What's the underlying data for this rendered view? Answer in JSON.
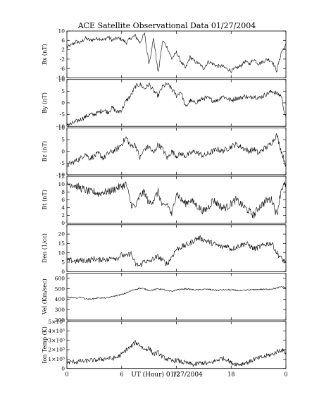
{
  "chart_data": {
    "title": "ACE Satellite Observational Data   01/27/2004",
    "type": "line",
    "xlabel": "UT (Hour)   01/27/2004",
    "x_ticks": [
      "0",
      "6",
      "12",
      "18",
      "0"
    ],
    "xlim": [
      0,
      24
    ],
    "grid": false,
    "panels": [
      {
        "ylabel": "Bx (nT)",
        "ylim": [
          -10,
          10
        ],
        "y_ticks": [
          -10,
          -6,
          -2,
          2,
          6,
          10
        ],
        "x": [
          0,
          0.5,
          1,
          1.5,
          2,
          2.5,
          3,
          3.5,
          4,
          4.5,
          5,
          5.5,
          6,
          6.5,
          7,
          7.5,
          8,
          8.5,
          9,
          9.5,
          10,
          10.5,
          11,
          11.5,
          12,
          12.5,
          13,
          13.5,
          14,
          14.5,
          15,
          15.5,
          16,
          16.5,
          17,
          17.5,
          18,
          18.5,
          19,
          19.5,
          20,
          20.5,
          21,
          21.5,
          22,
          22.5,
          23,
          23.5,
          24
        ],
        "values": [
          3,
          4,
          5.5,
          5,
          7,
          6,
          6.5,
          7,
          6,
          7.5,
          6,
          7,
          6.5,
          5,
          7,
          8,
          5,
          9,
          -4,
          7,
          -8,
          6,
          3,
          -2,
          1,
          -3,
          -6,
          -1,
          -3,
          -4,
          -6,
          -3,
          -4,
          -5,
          -5,
          -6,
          -7,
          -6,
          -5,
          -3,
          -4,
          -2,
          -4,
          -3,
          -2,
          -3,
          -7,
          1,
          4
        ],
        "noise": 0.8
      },
      {
        "ylabel": "By (nT)",
        "ylim": [
          -10,
          10
        ],
        "y_ticks": [
          -10,
          -5,
          0,
          5,
          10
        ],
        "x": [
          0,
          0.5,
          1,
          1.5,
          2,
          2.5,
          3,
          3.5,
          4,
          4.5,
          5,
          5.5,
          6,
          6.5,
          7,
          7.5,
          8,
          8.5,
          9,
          9.5,
          10,
          10.5,
          11,
          11.5,
          12,
          12.5,
          13,
          13.5,
          14,
          14.5,
          15,
          15.5,
          16,
          16.5,
          17,
          17.5,
          18,
          18.5,
          19,
          19.5,
          20,
          20.5,
          21,
          21.5,
          22,
          22.5,
          23,
          23.5,
          24
        ],
        "values": [
          -9,
          -9,
          -8,
          -7,
          -6,
          -5,
          -5,
          -4,
          -3,
          -4,
          -2,
          -4,
          -3,
          1,
          3,
          7,
          8,
          6,
          8,
          5,
          3,
          7,
          8,
          6,
          3,
          5,
          -2,
          1,
          0,
          1,
          2,
          2,
          1,
          1,
          3,
          2,
          1,
          2,
          2,
          3,
          2,
          3,
          2,
          3,
          4,
          5,
          4,
          3,
          -7
        ],
        "noise": 1.0
      },
      {
        "ylabel": "Bz (nT)",
        "ylim": [
          -10,
          10
        ],
        "y_ticks": [
          -10,
          -5,
          0,
          5,
          10
        ],
        "x": [
          0,
          0.5,
          1,
          1.5,
          2,
          2.5,
          3,
          3.5,
          4,
          4.5,
          5,
          5.5,
          6,
          6.5,
          7,
          7.5,
          8,
          8.5,
          9,
          9.5,
          10,
          10.5,
          11,
          11.5,
          12,
          12.5,
          13,
          13.5,
          14,
          14.5,
          15,
          15.5,
          16,
          16.5,
          17,
          17.5,
          18,
          18.5,
          19,
          19.5,
          20,
          20.5,
          21,
          21.5,
          22,
          22.5,
          23,
          23.5,
          24
        ],
        "values": [
          -6,
          -5,
          -4,
          -3,
          -1,
          -3,
          -2,
          -1,
          -3,
          -1,
          0,
          1,
          3,
          6,
          2,
          3,
          -3,
          1,
          2,
          -1,
          3,
          1,
          -3,
          0,
          -2,
          -1,
          -2,
          -1,
          0,
          -1,
          -2,
          -1,
          0,
          1,
          0,
          1,
          2,
          3,
          2,
          1,
          0,
          1,
          -1,
          1,
          2,
          4,
          7,
          0,
          -6
        ],
        "noise": 1.2
      },
      {
        "ylabel": "Bt (nT)",
        "ylim": [
          0,
          12
        ],
        "y_ticks": [
          0,
          2,
          4,
          6,
          8,
          10,
          12
        ],
        "x": [
          0,
          0.5,
          1,
          1.5,
          2,
          2.5,
          3,
          3.5,
          4,
          4.5,
          5,
          5.5,
          6,
          6.5,
          7,
          7.5,
          8,
          8.5,
          9,
          9.5,
          10,
          10.5,
          11,
          11.5,
          12,
          12.5,
          13,
          13.5,
          14,
          14.5,
          15,
          15.5,
          16,
          16.5,
          17,
          17.5,
          18,
          18.5,
          19,
          19.5,
          20,
          20.5,
          21,
          21.5,
          22,
          22.5,
          23,
          23.5,
          24
        ],
        "values": [
          10,
          10,
          9.5,
          9,
          8.5,
          8,
          8,
          7.5,
          8,
          8,
          8.5,
          9,
          9.5,
          10,
          5,
          4,
          7,
          8,
          5,
          6,
          8,
          4,
          5,
          2,
          8,
          6,
          5,
          6,
          5,
          4,
          3,
          4,
          6,
          5,
          4,
          4,
          5,
          6,
          5,
          4,
          3,
          2,
          4,
          5,
          6,
          6,
          2,
          9,
          10
        ],
        "noise": 1.0
      },
      {
        "ylabel": "Den (1/cc)",
        "ylim": [
          0,
          25
        ],
        "y_ticks": [
          0,
          5,
          10,
          15,
          20
        ],
        "x": [
          0,
          0.5,
          1,
          1.5,
          2,
          2.5,
          3,
          3.5,
          4,
          4.5,
          5,
          5.5,
          6,
          6.5,
          7,
          7.5,
          8,
          8.5,
          9,
          9.5,
          10,
          10.5,
          11,
          11.5,
          12,
          12.5,
          13,
          13.5,
          14,
          14.5,
          15,
          15.5,
          16,
          16.5,
          17,
          17.5,
          18,
          18.5,
          19,
          19.5,
          20,
          20.5,
          21,
          21.5,
          22,
          22.5,
          23,
          23.5,
          24
        ],
        "values": [
          6,
          6,
          5.5,
          6,
          6,
          6,
          7,
          6,
          7,
          6,
          8,
          7,
          9,
          8,
          10,
          4,
          3,
          6,
          5,
          7,
          8,
          6,
          4,
          8,
          12,
          13,
          14,
          15,
          17,
          18,
          17,
          16,
          15,
          14,
          13,
          14,
          12,
          13,
          14,
          15,
          14,
          12,
          13,
          14,
          15,
          15,
          10,
          7,
          5
        ],
        "noise": 1.5
      },
      {
        "ylabel": "Vel (Km/sec)",
        "ylim": [
          200,
          650
        ],
        "y_ticks": [
          200,
          300,
          400,
          500,
          600
        ],
        "x": [
          0,
          0.5,
          1,
          1.5,
          2,
          2.5,
          3,
          3.5,
          4,
          4.5,
          5,
          5.5,
          6,
          6.5,
          7,
          7.5,
          8,
          8.5,
          9,
          9.5,
          10,
          10.5,
          11,
          11.5,
          12,
          12.5,
          13,
          13.5,
          14,
          14.5,
          15,
          15.5,
          16,
          16.5,
          17,
          17.5,
          18,
          18.5,
          19,
          19.5,
          20,
          20.5,
          21,
          21.5,
          22,
          22.5,
          23,
          23.5,
          24
        ],
        "values": [
          420,
          415,
          410,
          420,
          405,
          400,
          405,
          415,
          410,
          415,
          425,
          435,
          445,
          460,
          480,
          495,
          505,
          500,
          485,
          490,
          500,
          495,
          480,
          475,
          490,
          495,
          500,
          495,
          490,
          490,
          495,
          495,
          490,
          485,
          490,
          490,
          490,
          485,
          480,
          485,
          490,
          490,
          495,
          495,
          495,
          500,
          505,
          520,
          510
        ],
        "noise": 6
      },
      {
        "ylabel": "Ion Temp (K)",
        "ylim": [
          0,
          500000
        ],
        "y_ticks": [
          0,
          100000,
          200000,
          300000,
          400000,
          500000
        ],
        "y_tick_labels": [
          "0",
          "1×10⁵",
          "2×10⁵",
          "3×10⁵",
          "4×10⁵",
          "5×10⁵"
        ],
        "x": [
          0,
          0.5,
          1,
          1.5,
          2,
          2.5,
          3,
          3.5,
          4,
          4.5,
          5,
          5.5,
          6,
          6.5,
          7,
          7.5,
          8,
          8.5,
          9,
          9.5,
          10,
          10.5,
          11,
          11.5,
          12,
          12.5,
          13,
          13.5,
          14,
          14.5,
          15,
          15.5,
          16,
          16.5,
          17,
          17.5,
          18,
          18.5,
          19,
          19.5,
          20,
          20.5,
          21,
          21.5,
          22,
          22.5,
          23,
          23.5,
          24
        ],
        "values": [
          60000,
          70000,
          70000,
          80000,
          75000,
          90000,
          85000,
          95000,
          100000,
          110000,
          105000,
          120000,
          150000,
          200000,
          230000,
          280000,
          250000,
          200000,
          220000,
          150000,
          170000,
          120000,
          100000,
          80000,
          90000,
          70000,
          60000,
          50000,
          40000,
          55000,
          60000,
          50000,
          70000,
          90000,
          110000,
          100000,
          60000,
          50000,
          45000,
          60000,
          70000,
          100000,
          110000,
          120000,
          140000,
          150000,
          180000,
          200000,
          170000
        ],
        "noise": 25000
      }
    ]
  }
}
